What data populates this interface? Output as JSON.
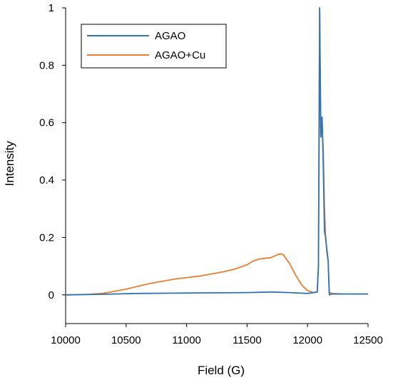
{
  "chart_data": {
    "type": "line",
    "title": "",
    "xlabel": "Field (G)",
    "ylabel": "Intensity",
    "xlim": [
      10000,
      12500
    ],
    "ylim": [
      -0.1,
      1.0
    ],
    "x_ticks": [
      10000,
      10500,
      11000,
      11500,
      12000,
      12500
    ],
    "x_tick_labels": [
      "10000",
      "10500",
      "11000",
      "11500",
      "12000",
      "12500"
    ],
    "y_ticks": [
      0,
      0.2,
      0.4,
      0.6,
      0.8,
      1.0
    ],
    "y_tick_labels": [
      "0",
      "0.2",
      "0.4",
      "0.6",
      "0.8",
      "1"
    ],
    "grid": false,
    "legend_position": "top-left",
    "series": [
      {
        "name": "AGAO",
        "color": "#2E75B6",
        "x": [
          10000,
          10300,
          10600,
          10900,
          11200,
          11500,
          11700,
          11850,
          12000,
          12080,
          12090,
          12095,
          12100,
          12110,
          12120,
          12130,
          12140,
          12150,
          12160,
          12170,
          12180,
          12200,
          12300,
          12400,
          12500
        ],
        "y": [
          0.0,
          0.002,
          0.005,
          0.006,
          0.007,
          0.008,
          0.01,
          0.008,
          0.005,
          0.01,
          0.1,
          0.5,
          1.0,
          0.55,
          0.62,
          0.45,
          0.22,
          0.2,
          0.15,
          0.12,
          0.0,
          0.003,
          0.003,
          0.003,
          0.003
        ]
      },
      {
        "name": "AGAO+Cu",
        "color": "#ED7D31",
        "x": [
          10000,
          10200,
          10300,
          10400,
          10500,
          10700,
          10900,
          11100,
          11300,
          11400,
          11500,
          11550,
          11600,
          11700,
          11750,
          11780,
          11800,
          11850,
          11900,
          11950,
          12000,
          12050,
          12080,
          12090,
          12095,
          12100,
          12105,
          12110,
          12120,
          12130,
          12140,
          12150,
          12160,
          12170,
          12180,
          12200,
          12300,
          12400,
          12500
        ],
        "y": [
          0.0,
          0.002,
          0.005,
          0.012,
          0.02,
          0.04,
          0.055,
          0.065,
          0.08,
          0.09,
          0.105,
          0.118,
          0.125,
          0.13,
          0.14,
          0.143,
          0.14,
          0.11,
          0.07,
          0.035,
          0.015,
          0.008,
          0.01,
          0.1,
          0.6,
          1.0,
          0.7,
          0.55,
          0.6,
          0.5,
          0.3,
          0.19,
          0.16,
          0.12,
          0.01,
          0.005,
          0.003,
          0.003,
          0.003
        ]
      }
    ]
  }
}
